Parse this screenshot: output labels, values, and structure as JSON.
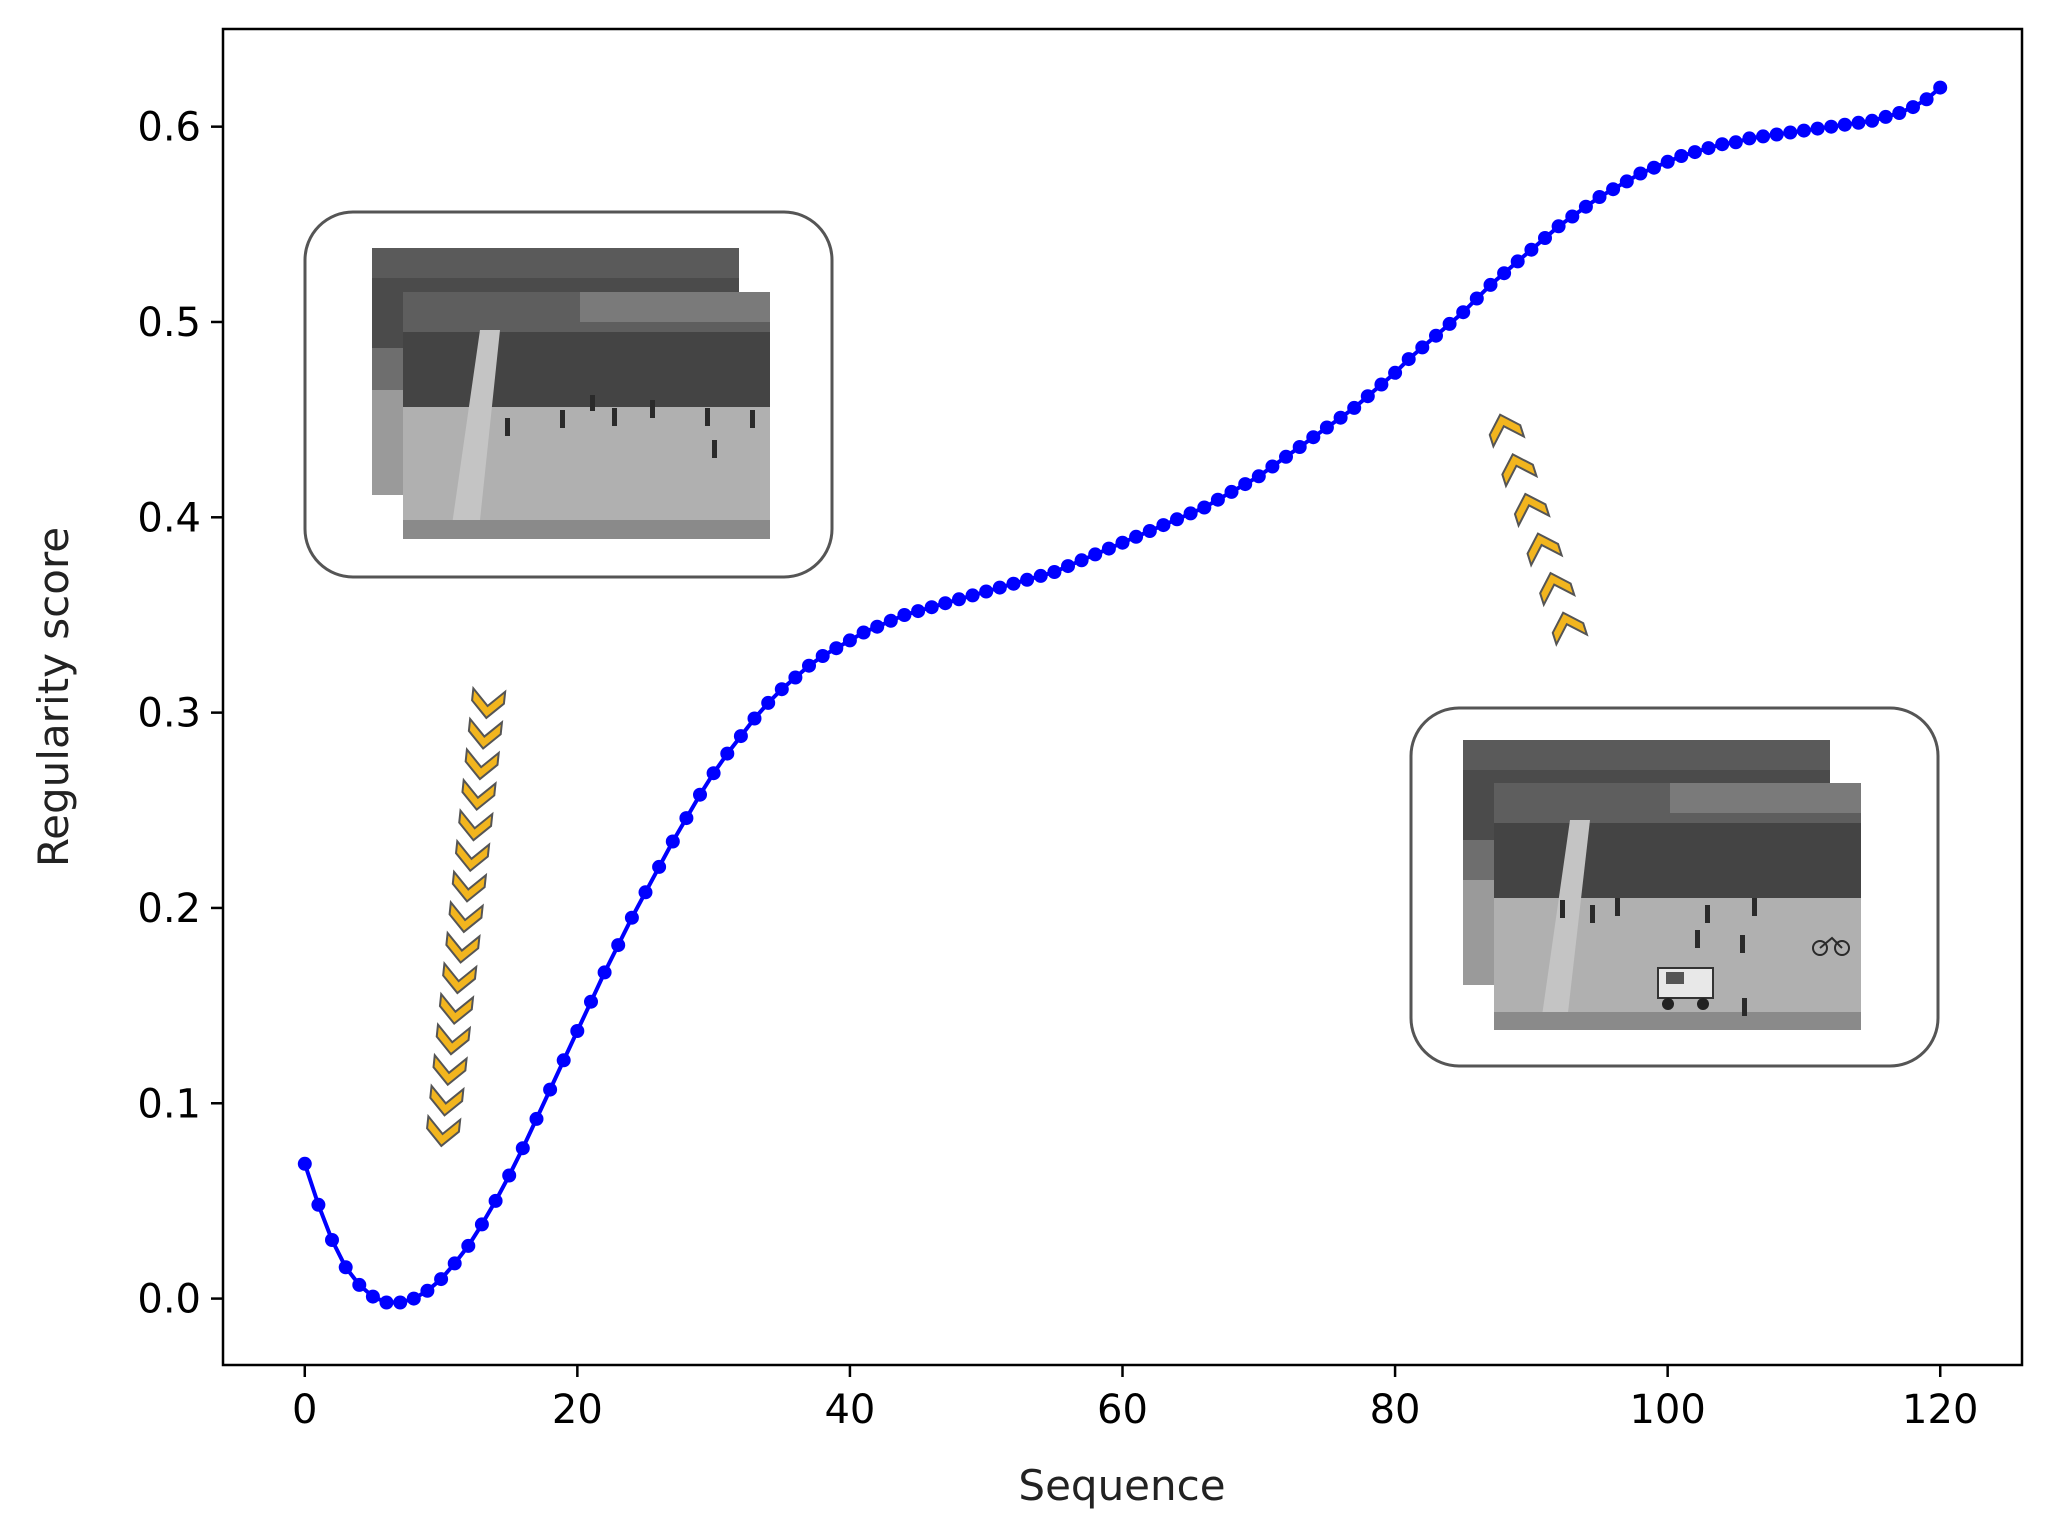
{
  "chart_data": {
    "type": "line",
    "xlabel": "Sequence",
    "ylabel": "Regularity score",
    "xlim": [
      -6,
      126
    ],
    "ylim": [
      -0.034,
      0.65
    ],
    "xticks": [
      0,
      20,
      40,
      60,
      80,
      100,
      120
    ],
    "xtick_labels": [
      "0",
      "20",
      "40",
      "60",
      "80",
      "100",
      "120"
    ],
    "yticks": [
      0.0,
      0.1,
      0.2,
      0.3,
      0.4,
      0.5,
      0.6
    ],
    "ytick_labels": [
      "0.0",
      "0.1",
      "0.2",
      "0.3",
      "0.4",
      "0.5",
      "0.6"
    ],
    "grid": false,
    "series": [
      {
        "color": "#0000ff",
        "marker": "circle",
        "x": [
          0,
          1,
          2,
          3,
          4,
          5,
          6,
          7,
          8,
          9,
          10,
          11,
          12,
          13,
          14,
          15,
          16,
          17,
          18,
          19,
          20,
          21,
          22,
          23,
          24,
          25,
          26,
          27,
          28,
          29,
          30,
          31,
          32,
          33,
          34,
          35,
          36,
          37,
          38,
          39,
          40,
          41,
          42,
          43,
          44,
          45,
          46,
          47,
          48,
          49,
          50,
          51,
          52,
          53,
          54,
          55,
          56,
          57,
          58,
          59,
          60,
          61,
          62,
          63,
          64,
          65,
          66,
          67,
          68,
          69,
          70,
          71,
          72,
          73,
          74,
          75,
          76,
          77,
          78,
          79,
          80,
          81,
          82,
          83,
          84,
          85,
          86,
          87,
          88,
          89,
          90,
          91,
          92,
          93,
          94,
          95,
          96,
          97,
          98,
          99,
          100,
          101,
          102,
          103,
          104,
          105,
          106,
          107,
          108,
          109,
          110,
          111,
          112,
          113,
          114,
          115,
          116,
          117,
          118,
          119,
          120
        ],
        "values": [
          0.069,
          0.048,
          0.03,
          0.016,
          0.007,
          0.001,
          -0.002,
          -0.002,
          0.0,
          0.004,
          0.01,
          0.018,
          0.027,
          0.038,
          0.05,
          0.063,
          0.077,
          0.092,
          0.107,
          0.122,
          0.137,
          0.152,
          0.167,
          0.181,
          0.195,
          0.208,
          0.221,
          0.234,
          0.246,
          0.258,
          0.269,
          0.279,
          0.288,
          0.297,
          0.305,
          0.312,
          0.318,
          0.324,
          0.329,
          0.333,
          0.337,
          0.341,
          0.344,
          0.347,
          0.35,
          0.352,
          0.354,
          0.356,
          0.358,
          0.36,
          0.362,
          0.364,
          0.366,
          0.368,
          0.37,
          0.372,
          0.375,
          0.378,
          0.381,
          0.384,
          0.387,
          0.39,
          0.393,
          0.396,
          0.399,
          0.402,
          0.405,
          0.409,
          0.413,
          0.417,
          0.421,
          0.426,
          0.431,
          0.436,
          0.441,
          0.446,
          0.451,
          0.456,
          0.462,
          0.468,
          0.474,
          0.481,
          0.487,
          0.493,
          0.499,
          0.505,
          0.512,
          0.519,
          0.525,
          0.531,
          0.537,
          0.543,
          0.549,
          0.554,
          0.559,
          0.564,
          0.568,
          0.572,
          0.576,
          0.579,
          0.582,
          0.585,
          0.587,
          0.589,
          0.591,
          0.592,
          0.594,
          0.595,
          0.596,
          0.597,
          0.598,
          0.599,
          0.6,
          0.601,
          0.602,
          0.603,
          0.605,
          0.607,
          0.61,
          0.614,
          0.62
        ]
      }
    ],
    "annotations": [
      {
        "kind": "image-inset",
        "description": "video frames",
        "x_range": [
          0,
          38
        ],
        "y_range": [
          0.39,
          0.57
        ]
      },
      {
        "kind": "image-inset",
        "description": "video frames",
        "x_range": [
          81,
          120
        ],
        "y_range": [
          0.14,
          0.32
        ]
      },
      {
        "kind": "chevron-arrow",
        "direction": "down",
        "color": "#f2b51e"
      },
      {
        "kind": "chevron-arrow",
        "direction": "up",
        "color": "#f2b51e"
      }
    ]
  },
  "colors": {
    "line": "#0000ff",
    "chevron": "#f2b51e",
    "axes": "#000000"
  }
}
